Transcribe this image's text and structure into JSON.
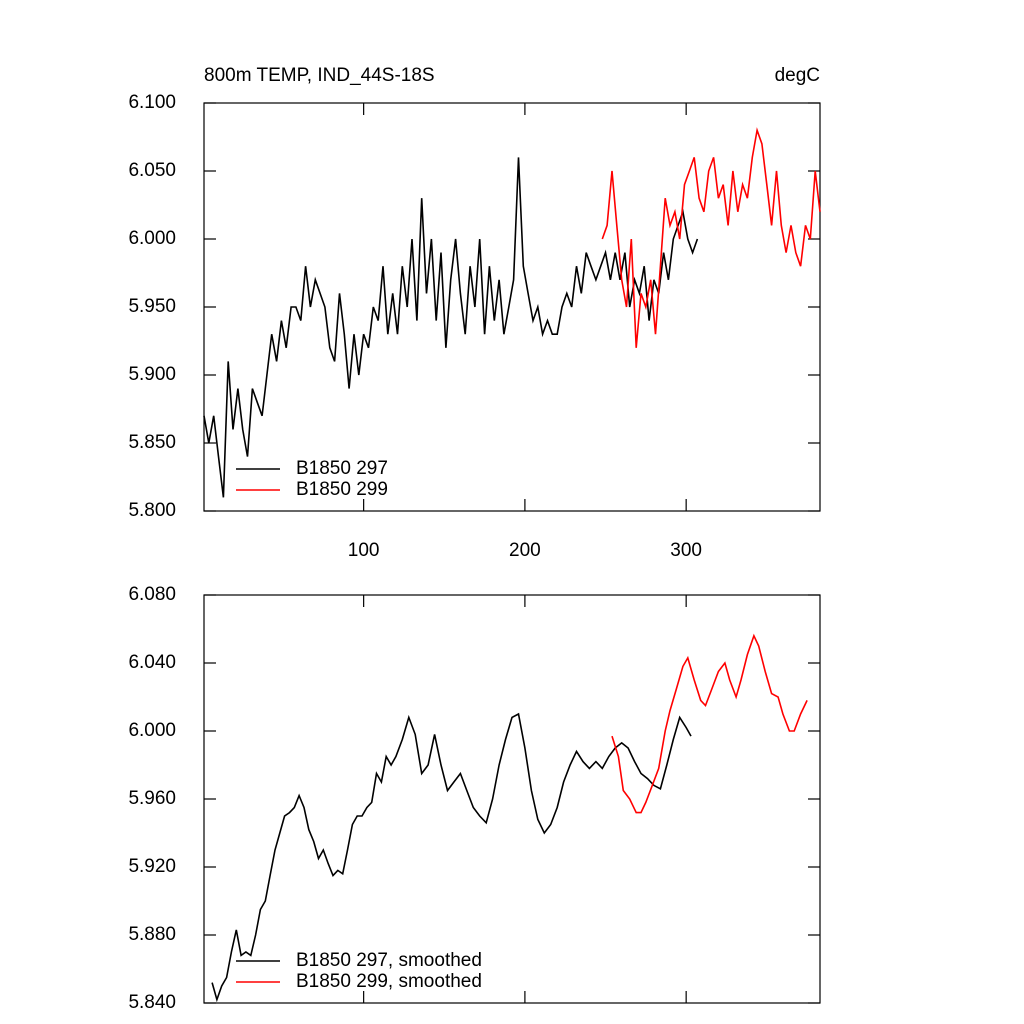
{
  "chart_data": [
    {
      "type": "line",
      "title": "800m TEMP, IND_44S-18S",
      "units": "degC",
      "xlim": [
        1,
        383
      ],
      "xticks": [
        100,
        200,
        300
      ],
      "show_xtick_labels": true,
      "ylim": [
        5.8,
        6.1
      ],
      "yticks": [
        {
          "value": 5.8,
          "label": "5.800"
        },
        {
          "value": 5.85,
          "label": "5.850"
        },
        {
          "value": 5.9,
          "label": "5.900"
        },
        {
          "value": 5.95,
          "label": "5.950"
        },
        {
          "value": 6.0,
          "label": "6.000"
        },
        {
          "value": 6.05,
          "label": "6.050"
        },
        {
          "value": 6.1,
          "label": "6.100"
        }
      ],
      "series": [
        {
          "name": "B1850 297",
          "color": "#000000",
          "x": [
            1,
            4,
            7,
            10,
            13,
            16,
            19,
            22,
            25,
            28,
            31,
            34,
            37,
            40,
            43,
            46,
            49,
            52,
            55,
            58,
            61,
            64,
            67,
            70,
            73,
            76,
            79,
            82,
            85,
            88,
            91,
            94,
            97,
            100,
            103,
            106,
            109,
            112,
            115,
            118,
            121,
            124,
            127,
            130,
            133,
            136,
            139,
            142,
            145,
            148,
            151,
            154,
            157,
            160,
            163,
            166,
            169,
            172,
            175,
            178,
            181,
            184,
            187,
            190,
            193,
            196,
            199,
            202,
            205,
            208,
            211,
            214,
            217,
            220,
            223,
            226,
            229,
            232,
            235,
            238,
            241,
            244,
            247,
            250,
            253,
            256,
            259,
            262,
            265,
            268,
            271,
            274,
            277,
            280,
            283,
            286,
            289,
            292,
            295,
            298,
            301,
            304,
            307
          ],
          "values": [
            5.87,
            5.85,
            5.87,
            5.84,
            5.81,
            5.91,
            5.86,
            5.89,
            5.86,
            5.84,
            5.89,
            5.88,
            5.87,
            5.9,
            5.93,
            5.91,
            5.94,
            5.92,
            5.95,
            5.95,
            5.94,
            5.98,
            5.95,
            5.97,
            5.96,
            5.95,
            5.92,
            5.91,
            5.96,
            5.93,
            5.89,
            5.93,
            5.9,
            5.93,
            5.92,
            5.95,
            5.94,
            5.98,
            5.93,
            5.96,
            5.93,
            5.98,
            5.95,
            6.0,
            5.94,
            6.03,
            5.96,
            6.0,
            5.94,
            5.99,
            5.92,
            5.97,
            6.0,
            5.96,
            5.93,
            5.98,
            5.95,
            6.0,
            5.93,
            5.98,
            5.94,
            5.97,
            5.93,
            5.95,
            5.97,
            6.06,
            5.98,
            5.96,
            5.94,
            5.95,
            5.93,
            5.94,
            5.93,
            5.93,
            5.95,
            5.96,
            5.95,
            5.98,
            5.96,
            5.99,
            5.98,
            5.97,
            5.98,
            5.99,
            5.97,
            5.99,
            5.97,
            5.99,
            5.95,
            5.97,
            5.96,
            5.98,
            5.94,
            5.97,
            5.96,
            5.99,
            5.97,
            6.0,
            6.01,
            6.02,
            6.0,
            5.99,
            6.0
          ]
        },
        {
          "name": "B1850 299",
          "color": "#ff0000",
          "x": [
            248,
            251,
            254,
            257,
            260,
            263,
            266,
            269,
            272,
            275,
            278,
            281,
            284,
            287,
            290,
            293,
            296,
            299,
            302,
            305,
            308,
            311,
            314,
            317,
            320,
            323,
            326,
            329,
            332,
            335,
            338,
            341,
            344,
            347,
            350,
            353,
            356,
            359,
            362,
            365,
            368,
            371,
            374,
            377,
            380,
            383
          ],
          "values": [
            6.0,
            6.01,
            6.05,
            6.01,
            5.97,
            5.95,
            6.0,
            5.92,
            5.96,
            5.95,
            5.97,
            5.93,
            5.98,
            6.03,
            6.01,
            6.02,
            6.0,
            6.04,
            6.05,
            6.06,
            6.03,
            6.02,
            6.05,
            6.06,
            6.03,
            6.04,
            6.01,
            6.05,
            6.02,
            6.04,
            6.03,
            6.06,
            6.08,
            6.07,
            6.04,
            6.01,
            6.05,
            6.01,
            5.99,
            6.01,
            5.99,
            5.98,
            6.01,
            6.0,
            6.05,
            6.02
          ]
        }
      ]
    },
    {
      "type": "line",
      "xlim": [
        1,
        383
      ],
      "xticks": [
        100,
        200,
        300
      ],
      "show_xtick_labels": false,
      "ylim": [
        5.84,
        6.08
      ],
      "yticks": [
        {
          "value": 5.84,
          "label": "5.840"
        },
        {
          "value": 5.88,
          "label": "5.880"
        },
        {
          "value": 5.92,
          "label": "5.920"
        },
        {
          "value": 5.96,
          "label": "5.960"
        },
        {
          "value": 6.0,
          "label": "6.000"
        },
        {
          "value": 6.04,
          "label": "6.040"
        },
        {
          "value": 6.08,
          "label": "6.080"
        }
      ],
      "series": [
        {
          "name": "B1850 297, smoothed",
          "color": "#000000",
          "x": [
            6,
            9,
            12,
            15,
            18,
            21,
            24,
            27,
            30,
            33,
            36,
            39,
            42,
            45,
            48,
            51,
            54,
            57,
            60,
            63,
            66,
            69,
            72,
            75,
            78,
            81,
            84,
            87,
            90,
            93,
            96,
            99,
            102,
            105,
            108,
            111,
            114,
            117,
            120,
            124,
            128,
            132,
            136,
            140,
            144,
            148,
            152,
            156,
            160,
            164,
            168,
            172,
            176,
            180,
            184,
            188,
            192,
            196,
            200,
            204,
            208,
            212,
            216,
            220,
            224,
            228,
            232,
            236,
            240,
            244,
            248,
            252,
            256,
            260,
            264,
            268,
            272,
            276,
            280,
            284,
            288,
            292,
            296,
            300,
            303
          ],
          "values": [
            5.852,
            5.842,
            5.85,
            5.855,
            5.87,
            5.883,
            5.868,
            5.87,
            5.868,
            5.88,
            5.895,
            5.9,
            5.915,
            5.93,
            5.94,
            5.95,
            5.952,
            5.955,
            5.962,
            5.955,
            5.942,
            5.935,
            5.925,
            5.93,
            5.922,
            5.915,
            5.918,
            5.916,
            5.93,
            5.945,
            5.95,
            5.95,
            5.955,
            5.958,
            5.975,
            5.97,
            5.985,
            5.98,
            5.985,
            5.995,
            6.008,
            5.998,
            5.975,
            5.98,
            5.998,
            5.98,
            5.965,
            5.97,
            5.975,
            5.965,
            5.955,
            5.95,
            5.946,
            5.96,
            5.98,
            5.995,
            6.008,
            6.01,
            5.99,
            5.965,
            5.948,
            5.94,
            5.945,
            5.955,
            5.97,
            5.98,
            5.988,
            5.982,
            5.978,
            5.982,
            5.978,
            5.985,
            5.99,
            5.993,
            5.99,
            5.982,
            5.975,
            5.972,
            5.968,
            5.966,
            5.98,
            5.995,
            6.008,
            6.002,
            5.997
          ]
        },
        {
          "name": "B1850 299, smoothed",
          "color": "#ff0000",
          "x": [
            254,
            258,
            261,
            265,
            269,
            272,
            275,
            279,
            283,
            287,
            290,
            294,
            298,
            301,
            305,
            309,
            312,
            316,
            320,
            324,
            327,
            331,
            334,
            338,
            342,
            345,
            349,
            353,
            357,
            360,
            364,
            367,
            371,
            375
          ],
          "values": [
            5.997,
            5.985,
            5.965,
            5.96,
            5.952,
            5.952,
            5.958,
            5.968,
            5.978,
            6.0,
            6.012,
            6.025,
            6.038,
            6.043,
            6.03,
            6.018,
            6.015,
            6.025,
            6.035,
            6.04,
            6.03,
            6.02,
            6.03,
            6.045,
            6.056,
            6.05,
            6.035,
            6.022,
            6.02,
            6.01,
            6.0,
            6.0,
            6.01,
            6.018
          ]
        }
      ]
    }
  ]
}
